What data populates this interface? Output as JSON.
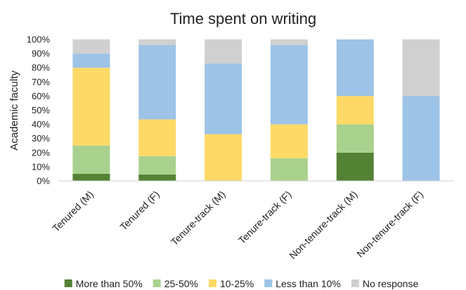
{
  "chart_data": {
    "type": "bar",
    "stacked": true,
    "title": "Time spent on writing",
    "xlabel": "",
    "ylabel": "Academic faculty",
    "ylim": [
      0,
      100
    ],
    "yticks": [
      "0%",
      "10%",
      "20%",
      "30%",
      "40%",
      "50%",
      "60%",
      "70%",
      "80%",
      "90%",
      "100%"
    ],
    "grid": false,
    "legend_position": "bottom",
    "categories": [
      "Tenured (M)",
      "Tenured (F)",
      "Tenure-track (M)",
      "Tenure-track (F)",
      "Non-tenure-track (M)",
      "Non-tenure-track (F)"
    ],
    "series": [
      {
        "name": "More than 50%",
        "color": "#548235",
        "values": [
          5,
          4.5,
          0,
          0,
          20,
          0
        ]
      },
      {
        "name": "25-50%",
        "color": "#a9d18e",
        "values": [
          20,
          13,
          0,
          16,
          20,
          0
        ]
      },
      {
        "name": "10-25%",
        "color": "#ffd966",
        "values": [
          55,
          26,
          33,
          24,
          20,
          0
        ]
      },
      {
        "name": "Less than 10%",
        "color": "#9dc3e6",
        "values": [
          10,
          52.5,
          50,
          56,
          40,
          60
        ]
      },
      {
        "name": "No response",
        "color": "#d0d0d0",
        "values": [
          10,
          4,
          17,
          4,
          0,
          40
        ]
      }
    ]
  }
}
